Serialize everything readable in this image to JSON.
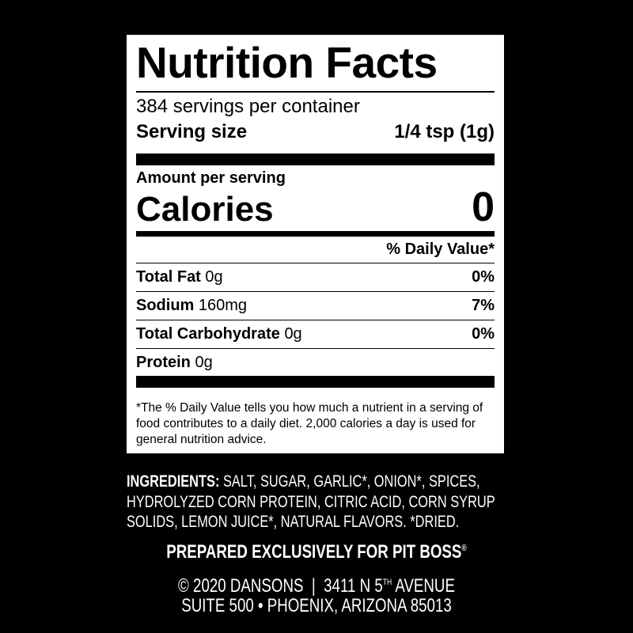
{
  "label": {
    "title": "Nutrition Facts",
    "servings_per_container": "384 servings per container",
    "serving_size_label": "Serving size",
    "serving_size_value": "1/4 tsp (1g)",
    "amount_per_serving": "Amount per serving",
    "calories_label": "Calories",
    "calories_value": "0",
    "daily_value_header": "% Daily Value*",
    "nutrients": [
      {
        "name": "Total Fat",
        "amount": "0g",
        "dv": "0%"
      },
      {
        "name": "Sodium",
        "amount": "160mg",
        "dv": "7%"
      },
      {
        "name": "Total Carbohydrate",
        "amount": "0g",
        "dv": "0%"
      },
      {
        "name": "Protein",
        "amount": "0g",
        "dv": ""
      }
    ],
    "footnote": "*The % Daily Value tells you how much a nutrient in a serving of food contributes to a daily diet. 2,000 calories a day is used for general nutrition advice."
  },
  "ingredients": {
    "heading": "INGREDIENTS:",
    "line1": "SALT, SUGAR, GARLIC*, ONION*, SPICES,",
    "line2": "HYDROLYZED CORN PROTEIN, CITRIC ACID, CORN SYRUP",
    "line3": "SOLIDS, LEMON JUICE*, NATURAL FLAVORS. *DRIED."
  },
  "company": {
    "prepared": "PREPARED EXCLUSIVELY FOR PIT BOSS",
    "registered": "®",
    "address1_pre": "© 2020 DANSONS  |  3411 N 5",
    "address1_sup": "TH",
    "address1_post": " AVENUE",
    "address2": "SUITE 500 • PHOENIX, ARIZONA 85013"
  }
}
